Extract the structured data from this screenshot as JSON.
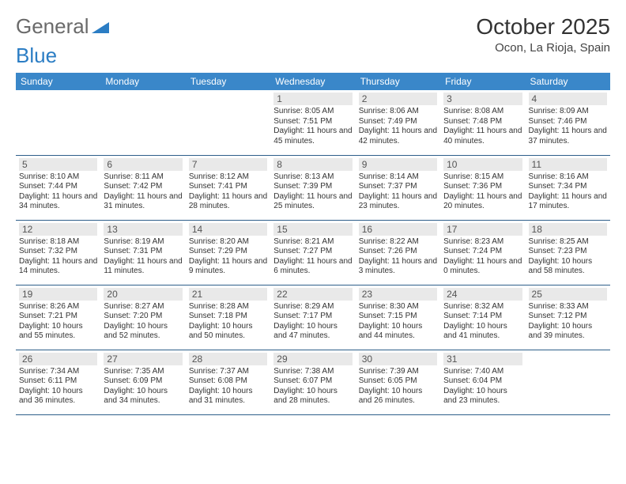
{
  "logo": {
    "text1": "General",
    "text2": "Blue"
  },
  "title": "October 2025",
  "location": "Ocon, La Rioja, Spain",
  "colors": {
    "header_bg": "#3a87c9",
    "daynum_bg": "#e9e9e9",
    "row_border": "#2e5f8a",
    "logo_gray": "#6a6a6a",
    "logo_blue": "#2b7dc4"
  },
  "daysOfWeek": [
    "Sunday",
    "Monday",
    "Tuesday",
    "Wednesday",
    "Thursday",
    "Friday",
    "Saturday"
  ],
  "startOffset": 3,
  "cells": [
    {
      "n": "1",
      "sr": "8:05 AM",
      "ss": "7:51 PM",
      "dl": "11 hours and 45 minutes."
    },
    {
      "n": "2",
      "sr": "8:06 AM",
      "ss": "7:49 PM",
      "dl": "11 hours and 42 minutes."
    },
    {
      "n": "3",
      "sr": "8:08 AM",
      "ss": "7:48 PM",
      "dl": "11 hours and 40 minutes."
    },
    {
      "n": "4",
      "sr": "8:09 AM",
      "ss": "7:46 PM",
      "dl": "11 hours and 37 minutes."
    },
    {
      "n": "5",
      "sr": "8:10 AM",
      "ss": "7:44 PM",
      "dl": "11 hours and 34 minutes."
    },
    {
      "n": "6",
      "sr": "8:11 AM",
      "ss": "7:42 PM",
      "dl": "11 hours and 31 minutes."
    },
    {
      "n": "7",
      "sr": "8:12 AM",
      "ss": "7:41 PM",
      "dl": "11 hours and 28 minutes."
    },
    {
      "n": "8",
      "sr": "8:13 AM",
      "ss": "7:39 PM",
      "dl": "11 hours and 25 minutes."
    },
    {
      "n": "9",
      "sr": "8:14 AM",
      "ss": "7:37 PM",
      "dl": "11 hours and 23 minutes."
    },
    {
      "n": "10",
      "sr": "8:15 AM",
      "ss": "7:36 PM",
      "dl": "11 hours and 20 minutes."
    },
    {
      "n": "11",
      "sr": "8:16 AM",
      "ss": "7:34 PM",
      "dl": "11 hours and 17 minutes."
    },
    {
      "n": "12",
      "sr": "8:18 AM",
      "ss": "7:32 PM",
      "dl": "11 hours and 14 minutes."
    },
    {
      "n": "13",
      "sr": "8:19 AM",
      "ss": "7:31 PM",
      "dl": "11 hours and 11 minutes."
    },
    {
      "n": "14",
      "sr": "8:20 AM",
      "ss": "7:29 PM",
      "dl": "11 hours and 9 minutes."
    },
    {
      "n": "15",
      "sr": "8:21 AM",
      "ss": "7:27 PM",
      "dl": "11 hours and 6 minutes."
    },
    {
      "n": "16",
      "sr": "8:22 AM",
      "ss": "7:26 PM",
      "dl": "11 hours and 3 minutes."
    },
    {
      "n": "17",
      "sr": "8:23 AM",
      "ss": "7:24 PM",
      "dl": "11 hours and 0 minutes."
    },
    {
      "n": "18",
      "sr": "8:25 AM",
      "ss": "7:23 PM",
      "dl": "10 hours and 58 minutes."
    },
    {
      "n": "19",
      "sr": "8:26 AM",
      "ss": "7:21 PM",
      "dl": "10 hours and 55 minutes."
    },
    {
      "n": "20",
      "sr": "8:27 AM",
      "ss": "7:20 PM",
      "dl": "10 hours and 52 minutes."
    },
    {
      "n": "21",
      "sr": "8:28 AM",
      "ss": "7:18 PM",
      "dl": "10 hours and 50 minutes."
    },
    {
      "n": "22",
      "sr": "8:29 AM",
      "ss": "7:17 PM",
      "dl": "10 hours and 47 minutes."
    },
    {
      "n": "23",
      "sr": "8:30 AM",
      "ss": "7:15 PM",
      "dl": "10 hours and 44 minutes."
    },
    {
      "n": "24",
      "sr": "8:32 AM",
      "ss": "7:14 PM",
      "dl": "10 hours and 41 minutes."
    },
    {
      "n": "25",
      "sr": "8:33 AM",
      "ss": "7:12 PM",
      "dl": "10 hours and 39 minutes."
    },
    {
      "n": "26",
      "sr": "7:34 AM",
      "ss": "6:11 PM",
      "dl": "10 hours and 36 minutes."
    },
    {
      "n": "27",
      "sr": "7:35 AM",
      "ss": "6:09 PM",
      "dl": "10 hours and 34 minutes."
    },
    {
      "n": "28",
      "sr": "7:37 AM",
      "ss": "6:08 PM",
      "dl": "10 hours and 31 minutes."
    },
    {
      "n": "29",
      "sr": "7:38 AM",
      "ss": "6:07 PM",
      "dl": "10 hours and 28 minutes."
    },
    {
      "n": "30",
      "sr": "7:39 AM",
      "ss": "6:05 PM",
      "dl": "10 hours and 26 minutes."
    },
    {
      "n": "31",
      "sr": "7:40 AM",
      "ss": "6:04 PM",
      "dl": "10 hours and 23 minutes."
    }
  ],
  "labels": {
    "sunrise": "Sunrise:",
    "sunset": "Sunset:",
    "daylight": "Daylight:"
  }
}
